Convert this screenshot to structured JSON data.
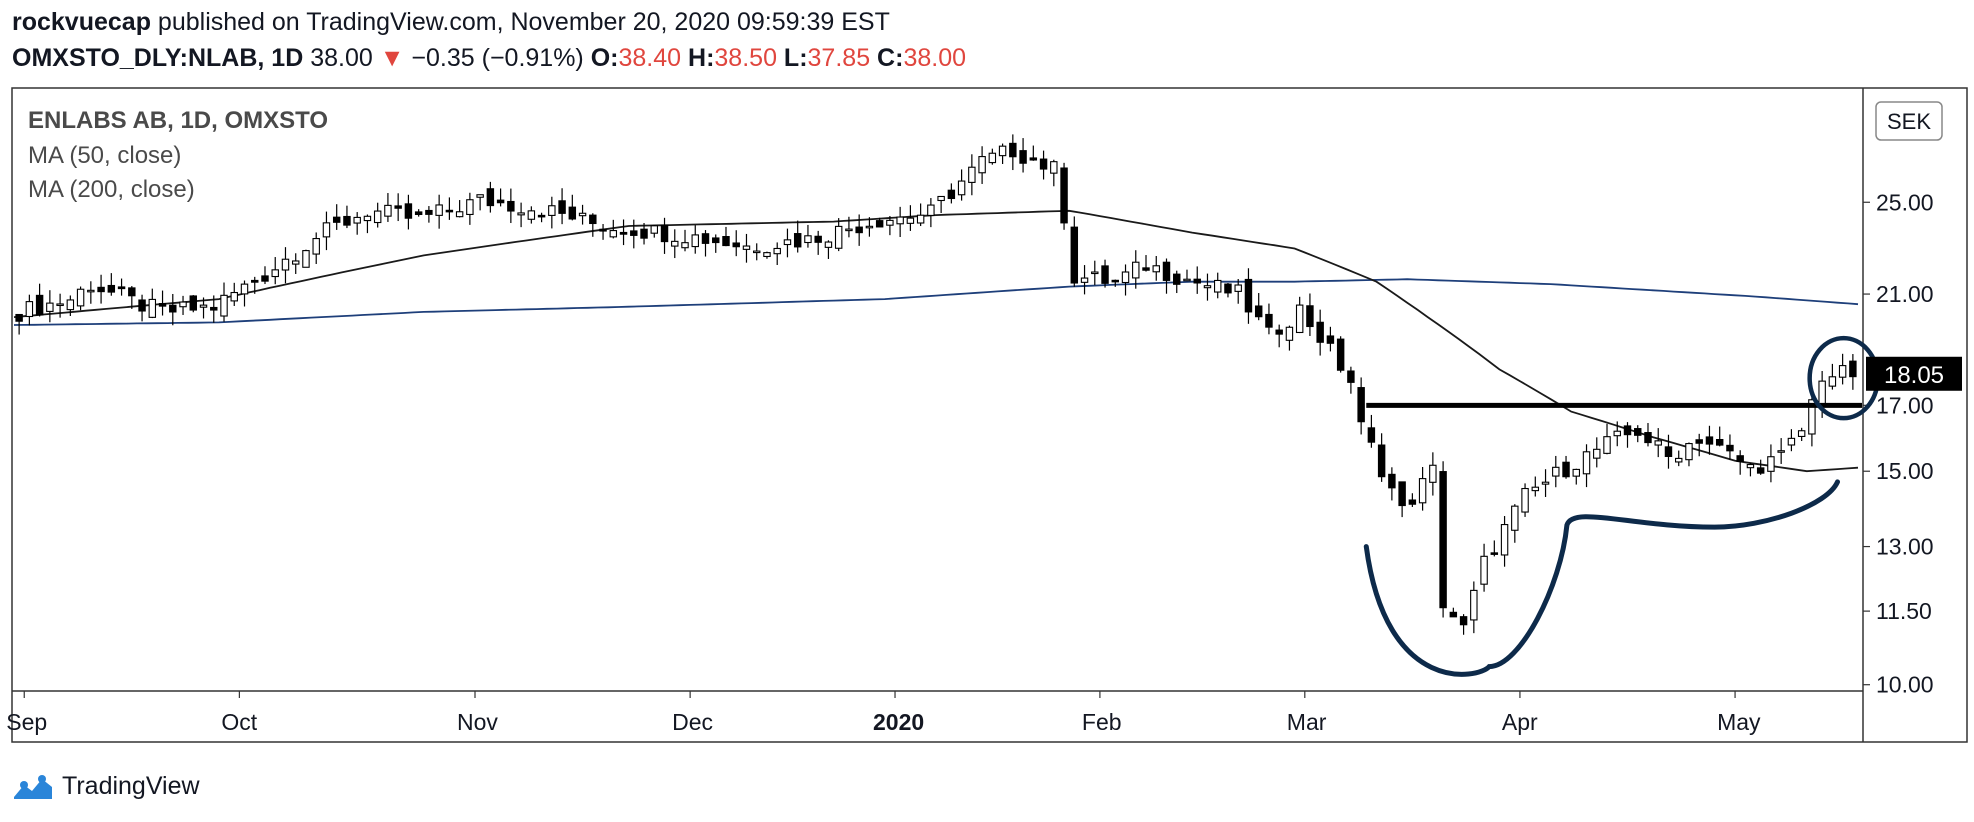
{
  "header": {
    "publisher": "rockvuecap",
    "publish_text": "published on TradingView.com, November 20, 2020 09:59:39 EST",
    "symbol": "OMXSTO_DLY:NLAB, 1D",
    "last": "38.00",
    "arrow": "▼",
    "change": "−0.35 (−0.91%)",
    "o_label": "O:",
    "o_value": "38.40",
    "h_label": "H:",
    "h_value": "38.50",
    "l_label": "L:",
    "l_value": "37.85",
    "c_label": "C:",
    "c_value": "38.00"
  },
  "legend": {
    "title": "ENLABS AB, 1D, OMXSTO",
    "ma50": "MA (50, close)",
    "ma200": "MA (200, close)"
  },
  "currency": "SEK",
  "price_label": "18.05",
  "footer": {
    "brand": "TradingView"
  },
  "colors": {
    "up_fill": "#ffffff",
    "down_fill": "#000000",
    "wick": "#000000",
    "ma50": "#1a1a1a",
    "ma200": "#1e3f7a",
    "annotation": "#0d2a4a",
    "change_red": "#e0463e",
    "text": "#131722",
    "axis_border": "#333333",
    "brand_blue": "#2a85d9"
  },
  "chart_data": {
    "type": "candlestick",
    "title": "ENLABS AB, 1D, OMXSTO",
    "ylabel": "SEK",
    "y_scale": "log",
    "ylim": [
      9.9,
      31.0
    ],
    "y_ticks": [
      10.0,
      11.5,
      13.0,
      15.0,
      17.0,
      21.0,
      25.0
    ],
    "y_tick_labels": [
      "10.00",
      "11.50",
      "13.00",
      "15.00",
      "17.00",
      "21.00",
      "25.00"
    ],
    "x_ticks": [
      {
        "label": "Sep",
        "bold": false
      },
      {
        "label": "Oct",
        "bold": false
      },
      {
        "label": "Nov",
        "bold": false
      },
      {
        "label": "Dec",
        "bold": false
      },
      {
        "label": "2020",
        "bold": true
      },
      {
        "label": "Feb",
        "bold": false
      },
      {
        "label": "Mar",
        "bold": false
      },
      {
        "label": "Apr",
        "bold": false
      },
      {
        "label": "May",
        "bold": false
      }
    ],
    "x_tick_index": [
      1,
      22,
      45,
      66,
      86,
      106,
      126,
      147,
      168
    ],
    "n_bars": 180,
    "anchors": [
      [
        0,
        20.2
      ],
      [
        6,
        20.8
      ],
      [
        8,
        21.4
      ],
      [
        12,
        20.7
      ],
      [
        15,
        20.3
      ],
      [
        20,
        20.5
      ],
      [
        25,
        21.8
      ],
      [
        30,
        23.4
      ],
      [
        35,
        24.6
      ],
      [
        40,
        24.2
      ],
      [
        46,
        25.1
      ],
      [
        52,
        24.7
      ],
      [
        58,
        23.9
      ],
      [
        66,
        23.5
      ],
      [
        72,
        23.0
      ],
      [
        78,
        23.3
      ],
      [
        85,
        24.2
      ],
      [
        90,
        24.5
      ],
      [
        95,
        27.0
      ],
      [
        98,
        27.6
      ],
      [
        102,
        26.6
      ],
      [
        103,
        24.4
      ],
      [
        104,
        21.7
      ],
      [
        108,
        21.5
      ],
      [
        111,
        22.2
      ],
      [
        115,
        21.6
      ],
      [
        120,
        21.0
      ],
      [
        123,
        19.4
      ],
      [
        126,
        20.4
      ],
      [
        131,
        17.8
      ],
      [
        132,
        16.3
      ],
      [
        136,
        13.9
      ],
      [
        139,
        15.0
      ],
      [
        140,
        11.7
      ],
      [
        142,
        11.1
      ],
      [
        144,
        12.6
      ],
      [
        148,
        14.3
      ],
      [
        152,
        15.1
      ],
      [
        156,
        15.8
      ],
      [
        159,
        16.2
      ],
      [
        162,
        15.4
      ],
      [
        165,
        16.0
      ],
      [
        170,
        15.1
      ],
      [
        173,
        15.4
      ],
      [
        175,
        16.2
      ],
      [
        177,
        18.0
      ],
      [
        180,
        18.05
      ]
    ],
    "ma50": [
      [
        0,
        20.1
      ],
      [
        20,
        20.8
      ],
      [
        40,
        22.6
      ],
      [
        60,
        23.9
      ],
      [
        80,
        24.1
      ],
      [
        90,
        24.4
      ],
      [
        103,
        24.6
      ],
      [
        115,
        23.6
      ],
      [
        125,
        22.9
      ],
      [
        133,
        21.5
      ],
      [
        138,
        20.1
      ],
      [
        145,
        18.2
      ],
      [
        152,
        16.8
      ],
      [
        160,
        16.0
      ],
      [
        168,
        15.3
      ],
      [
        175,
        15.0
      ],
      [
        180,
        15.1
      ]
    ],
    "ma200": [
      [
        0,
        19.8
      ],
      [
        20,
        19.9
      ],
      [
        40,
        20.3
      ],
      [
        60,
        20.5
      ],
      [
        85,
        20.8
      ],
      [
        103,
        21.3
      ],
      [
        115,
        21.5
      ],
      [
        125,
        21.5
      ],
      [
        136,
        21.6
      ],
      [
        150,
        21.4
      ],
      [
        170,
        20.9
      ],
      [
        180,
        20.6
      ]
    ],
    "annotations": {
      "horizontal_line_value": 17.0,
      "horizontal_line_from_bar": 132,
      "cup_and_handle": true,
      "circled_breakout": true
    }
  }
}
